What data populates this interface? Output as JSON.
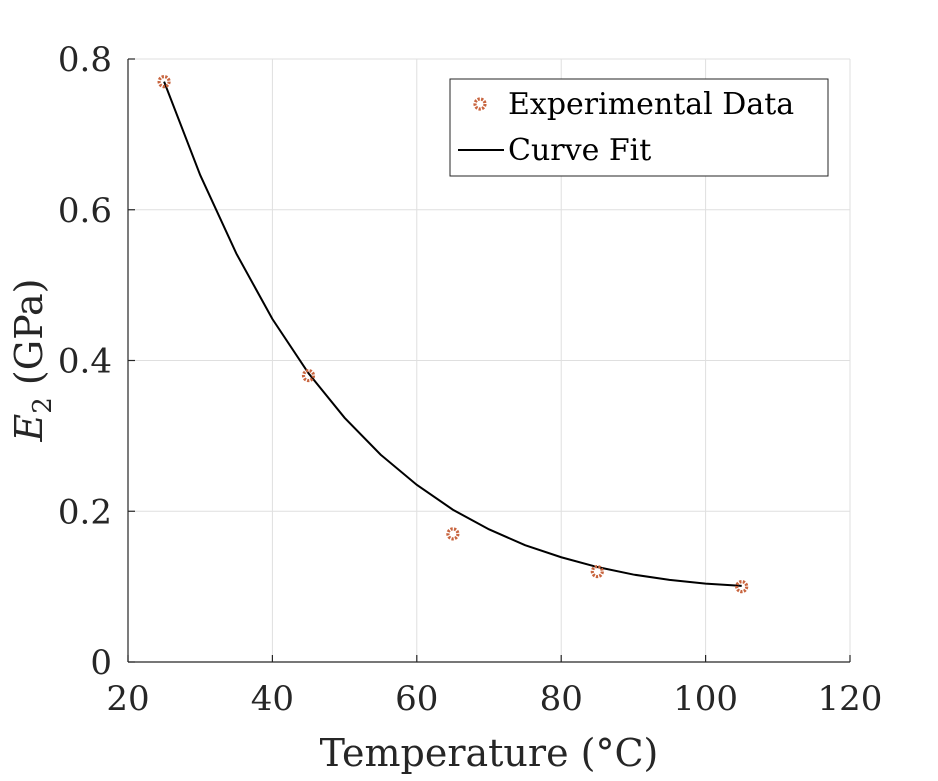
{
  "chart_data": {
    "type": "scatter",
    "xlabel": "Temperature (°C)",
    "ylabel": {
      "symbol": "E",
      "subscript": "2",
      "unit": "(GPa)"
    },
    "xlim": [
      20,
      120
    ],
    "ylim": [
      0,
      0.8
    ],
    "xticks": [
      20,
      40,
      60,
      80,
      100,
      120
    ],
    "yticks": [
      0,
      0.2,
      0.4,
      0.6,
      0.8
    ],
    "xtick_labels": [
      "20",
      "40",
      "60",
      "80",
      "100",
      "120"
    ],
    "ytick_labels": [
      "0",
      "0.2",
      "0.4",
      "0.6",
      "0.8"
    ],
    "grid": true,
    "legend_position": "top-right",
    "series": [
      {
        "name": "Experimental Data",
        "type": "scatter",
        "marker": "circle-open",
        "color": "#c8653f",
        "x": [
          25,
          45,
          65,
          85,
          105
        ],
        "y": [
          0.77,
          0.38,
          0.17,
          0.12,
          0.1
        ]
      },
      {
        "name": "Curve Fit",
        "type": "line",
        "color": "#000000",
        "x": [
          25,
          30,
          35,
          40,
          45,
          50,
          55,
          60,
          65,
          70,
          75,
          80,
          85,
          90,
          95,
          100,
          105
        ],
        "y": [
          0.77,
          0.646,
          0.542,
          0.455,
          0.383,
          0.324,
          0.275,
          0.235,
          0.202,
          0.176,
          0.155,
          0.139,
          0.126,
          0.116,
          0.109,
          0.104,
          0.101
        ]
      }
    ]
  }
}
